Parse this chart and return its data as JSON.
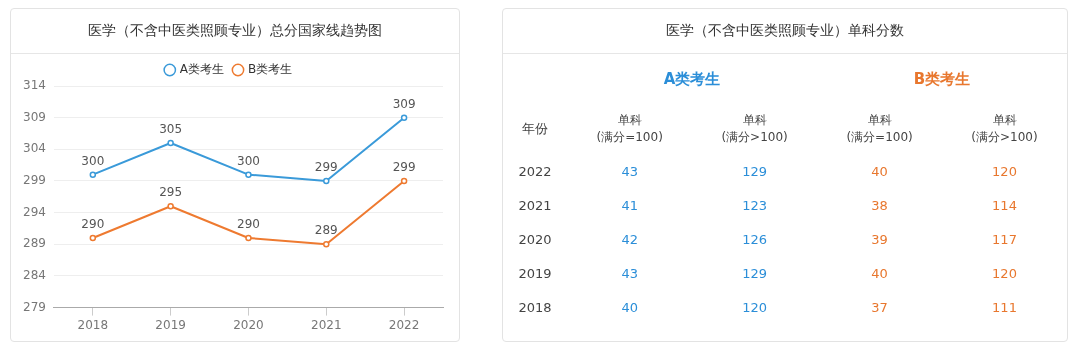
{
  "chart_data": [
    {
      "type": "line",
      "title": "医学（不含中医类照顾专业）总分国家线趋势图",
      "categories": [
        "2018",
        "2019",
        "2020",
        "2021",
        "2022"
      ],
      "series": [
        {
          "name": "A类考生",
          "color": "#3a9ad9",
          "values": [
            300,
            305,
            300,
            299,
            309
          ]
        },
        {
          "name": "B类考生",
          "color": "#ee7a30",
          "values": [
            290,
            295,
            290,
            289,
            299
          ]
        }
      ],
      "ylim": [
        279,
        314
      ],
      "yticks": [
        279,
        284,
        289,
        294,
        299,
        304,
        309,
        314
      ],
      "grid": "y",
      "legend": "top",
      "marker": "circle",
      "line_style": "solid",
      "data_labels": true
    },
    {
      "type": "heatmap",
      "title": "医学（不含中医类照顾专业）单科分数",
      "ylabel": "年份",
      "categories": [
        "单科\n(满分=100)",
        "单科\n(满分>100)",
        "单科\n(满分=100)",
        "单科\n(满分>100)"
      ],
      "y_categories": [
        "2022",
        "2021",
        "2020",
        "2019",
        "2018"
      ],
      "annotations": [
        "A类考生",
        "B类考生"
      ],
      "colors": [
        "#2b8ed8",
        "#2b8ed8",
        "#e8772e",
        "#e8772e"
      ],
      "cells": [
        [
          43,
          129,
          40,
          120
        ],
        [
          41,
          123,
          38,
          114
        ],
        [
          42,
          126,
          39,
          117
        ],
        [
          43,
          129,
          40,
          120
        ],
        [
          40,
          120,
          37,
          111
        ]
      ],
      "data_labels": true
    }
  ]
}
